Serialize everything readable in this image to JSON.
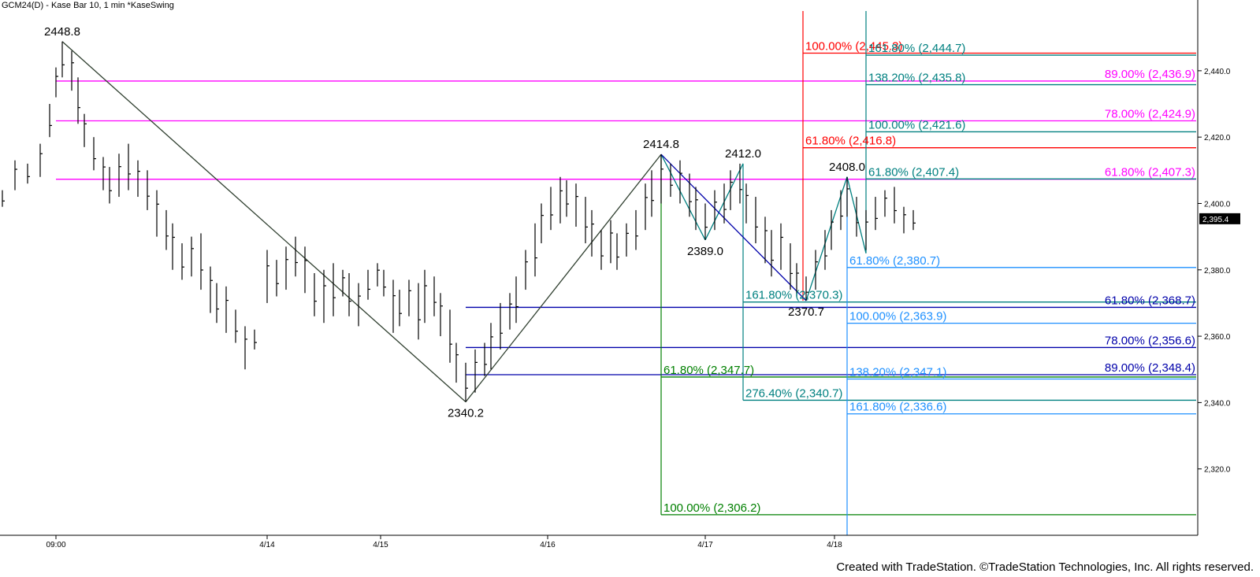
{
  "window": {
    "title": "GCM24(D) - Kase Bar 10, 1 min  *KaseSwing",
    "copyright": "Created with TradeStation. ©TradeStation Technologies, Inc. All rights reserved.",
    "last_price_label": "2,395.4"
  },
  "colors": {
    "magenta": "#ff00ff",
    "navy": "#0000aa",
    "red": "#ff0000",
    "green": "#008000",
    "teal": "#008080",
    "sky": "#1e90ff",
    "swing": "#2f3f2f",
    "bars": "#000000"
  },
  "chart_data": {
    "type": "bar",
    "subtype": "ohlc-price-bars",
    "ylim": [
      2300,
      2458
    ],
    "y_ticks": [
      2320,
      2340,
      2360,
      2380,
      2400,
      2420,
      2440
    ],
    "y_tick_labels": [
      "2,320.0",
      "2,340.0",
      "2,360.0",
      "2,380.0",
      "2,400.0",
      "2,420.0",
      "2,440.0"
    ],
    "x_tick_labels": [
      "09:00",
      "4/14",
      "4/15",
      "4/16",
      "4/17",
      "4/18"
    ],
    "x_tick_index": [
      17,
      84,
      120,
      173,
      223,
      264
    ],
    "bar_count": 292,
    "last_price": 2395.4,
    "bars": [
      {
        "i": 0,
        "h": 2404,
        "l": 2399
      },
      {
        "i": 4,
        "h": 2413,
        "l": 2404
      },
      {
        "i": 8,
        "h": 2412,
        "l": 2406
      },
      {
        "i": 12,
        "h": 2418,
        "l": 2408
      },
      {
        "i": 15,
        "h": 2430,
        "l": 2420
      },
      {
        "i": 17,
        "h": 2441,
        "l": 2432
      },
      {
        "i": 19,
        "h": 2448.8,
        "l": 2438
      },
      {
        "i": 22,
        "h": 2446,
        "l": 2434
      },
      {
        "i": 24,
        "h": 2438,
        "l": 2424
      },
      {
        "i": 26,
        "h": 2427,
        "l": 2417
      },
      {
        "i": 29,
        "h": 2420,
        "l": 2410
      },
      {
        "i": 32,
        "h": 2414,
        "l": 2404
      },
      {
        "i": 34,
        "h": 2411,
        "l": 2400
      },
      {
        "i": 37,
        "h": 2415,
        "l": 2402
      },
      {
        "i": 40,
        "h": 2418,
        "l": 2404
      },
      {
        "i": 43,
        "h": 2413,
        "l": 2402
      },
      {
        "i": 46,
        "h": 2410,
        "l": 2398
      },
      {
        "i": 49,
        "h": 2404,
        "l": 2390
      },
      {
        "i": 52,
        "h": 2398,
        "l": 2386
      },
      {
        "i": 54,
        "h": 2394,
        "l": 2380
      },
      {
        "i": 57,
        "h": 2388,
        "l": 2377
      },
      {
        "i": 60,
        "h": 2390,
        "l": 2378
      },
      {
        "i": 63,
        "h": 2391,
        "l": 2374
      },
      {
        "i": 66,
        "h": 2381,
        "l": 2367
      },
      {
        "i": 68,
        "h": 2376,
        "l": 2364
      },
      {
        "i": 71,
        "h": 2375,
        "l": 2361
      },
      {
        "i": 74,
        "h": 2368,
        "l": 2358
      },
      {
        "i": 77,
        "h": 2363,
        "l": 2350
      },
      {
        "i": 80,
        "h": 2362,
        "l": 2356
      },
      {
        "i": 84,
        "h": 2386,
        "l": 2370
      },
      {
        "i": 87,
        "h": 2383,
        "l": 2372
      },
      {
        "i": 90,
        "h": 2387,
        "l": 2374
      },
      {
        "i": 93,
        "h": 2390,
        "l": 2378
      },
      {
        "i": 96,
        "h": 2387,
        "l": 2373
      },
      {
        "i": 99,
        "h": 2379,
        "l": 2366
      },
      {
        "i": 102,
        "h": 2380,
        "l": 2364
      },
      {
        "i": 105,
        "h": 2382,
        "l": 2366
      },
      {
        "i": 108,
        "h": 2380,
        "l": 2372
      },
      {
        "i": 110,
        "h": 2379,
        "l": 2366
      },
      {
        "i": 113,
        "h": 2376,
        "l": 2363
      },
      {
        "i": 116,
        "h": 2380,
        "l": 2371
      },
      {
        "i": 119,
        "h": 2382,
        "l": 2375
      },
      {
        "i": 121,
        "h": 2380,
        "l": 2372
      },
      {
        "i": 124,
        "h": 2377,
        "l": 2361
      },
      {
        "i": 126,
        "h": 2374,
        "l": 2363
      },
      {
        "i": 129,
        "h": 2377,
        "l": 2366
      },
      {
        "i": 132,
        "h": 2376,
        "l": 2359
      },
      {
        "i": 134,
        "h": 2380,
        "l": 2364
      },
      {
        "i": 137,
        "h": 2378,
        "l": 2366
      },
      {
        "i": 139,
        "h": 2373,
        "l": 2360
      },
      {
        "i": 142,
        "h": 2368,
        "l": 2352
      },
      {
        "i": 144,
        "h": 2358,
        "l": 2346
      },
      {
        "i": 147,
        "h": 2352,
        "l": 2340.2
      },
      {
        "i": 150,
        "h": 2356,
        "l": 2343
      },
      {
        "i": 153,
        "h": 2358,
        "l": 2348
      },
      {
        "i": 155,
        "h": 2364,
        "l": 2350
      },
      {
        "i": 158,
        "h": 2370,
        "l": 2356
      },
      {
        "i": 161,
        "h": 2373,
        "l": 2362
      },
      {
        "i": 163,
        "h": 2378,
        "l": 2364
      },
      {
        "i": 166,
        "h": 2386,
        "l": 2374
      },
      {
        "i": 169,
        "h": 2394,
        "l": 2378
      },
      {
        "i": 171,
        "h": 2400,
        "l": 2388
      },
      {
        "i": 174,
        "h": 2405,
        "l": 2392
      },
      {
        "i": 177,
        "h": 2408,
        "l": 2394
      },
      {
        "i": 179,
        "h": 2407,
        "l": 2396
      },
      {
        "i": 182,
        "h": 2406,
        "l": 2393
      },
      {
        "i": 185,
        "h": 2402,
        "l": 2388
      },
      {
        "i": 187,
        "h": 2398,
        "l": 2384
      },
      {
        "i": 190,
        "h": 2392,
        "l": 2380
      },
      {
        "i": 193,
        "h": 2395,
        "l": 2382
      },
      {
        "i": 195,
        "h": 2391,
        "l": 2380
      },
      {
        "i": 198,
        "h": 2394,
        "l": 2384
      },
      {
        "i": 201,
        "h": 2398,
        "l": 2386
      },
      {
        "i": 204,
        "h": 2406,
        "l": 2392
      },
      {
        "i": 206,
        "h": 2410,
        "l": 2396
      },
      {
        "i": 209,
        "h": 2414.8,
        "l": 2400
      },
      {
        "i": 212,
        "h": 2412,
        "l": 2402
      },
      {
        "i": 215,
        "h": 2413,
        "l": 2400
      },
      {
        "i": 218,
        "h": 2409,
        "l": 2396
      },
      {
        "i": 220,
        "h": 2405,
        "l": 2392
      },
      {
        "i": 223,
        "h": 2400,
        "l": 2389
      },
      {
        "i": 226,
        "h": 2404,
        "l": 2392
      },
      {
        "i": 229,
        "h": 2406,
        "l": 2394
      },
      {
        "i": 231,
        "h": 2410,
        "l": 2398
      },
      {
        "i": 234,
        "h": 2412,
        "l": 2400
      },
      {
        "i": 236,
        "h": 2406,
        "l": 2394
      },
      {
        "i": 239,
        "h": 2402,
        "l": 2388
      },
      {
        "i": 242,
        "h": 2396,
        "l": 2382
      },
      {
        "i": 244,
        "h": 2392,
        "l": 2378
      },
      {
        "i": 247,
        "h": 2394,
        "l": 2380
      },
      {
        "i": 250,
        "h": 2388,
        "l": 2374
      },
      {
        "i": 252,
        "h": 2382,
        "l": 2372
      },
      {
        "i": 255,
        "h": 2378,
        "l": 2370.7
      },
      {
        "i": 258,
        "h": 2386,
        "l": 2374
      },
      {
        "i": 261,
        "h": 2392,
        "l": 2380
      },
      {
        "i": 263,
        "h": 2398,
        "l": 2386
      },
      {
        "i": 266,
        "h": 2404,
        "l": 2392
      },
      {
        "i": 268,
        "h": 2408,
        "l": 2396
      },
      {
        "i": 271,
        "h": 2402,
        "l": 2390
      },
      {
        "i": 274,
        "h": 2398,
        "l": 2386
      },
      {
        "i": 277,
        "h": 2402,
        "l": 2392
      },
      {
        "i": 280,
        "h": 2404,
        "l": 2396
      },
      {
        "i": 283,
        "h": 2405,
        "l": 2394
      },
      {
        "i": 286,
        "h": 2399,
        "l": 2391
      },
      {
        "i": 289,
        "h": 2398,
        "l": 2392
      }
    ],
    "swing_points": [
      {
        "i": 19,
        "price": 2448.8,
        "label": "2448.8",
        "pos": "above"
      },
      {
        "i": 147,
        "price": 2340.2,
        "label": "2340.2",
        "pos": "below"
      },
      {
        "i": 209,
        "price": 2414.8,
        "label": "2414.8",
        "pos": "above"
      },
      {
        "i": 223,
        "price": 2389.0,
        "label": "2389.0",
        "pos": "below"
      },
      {
        "i": 235,
        "price": 2412.0,
        "label": "2412.0",
        "pos": "above"
      },
      {
        "i": 255,
        "price": 2370.7,
        "label": "2370.7",
        "pos": "below"
      },
      {
        "i": 268,
        "price": 2408.0,
        "label": "2408.0",
        "pos": "above"
      }
    ],
    "swing_lines": [
      {
        "from": [
          19,
          2448.8
        ],
        "to": [
          147,
          2340.2
        ],
        "color": "swing"
      },
      {
        "from": [
          147,
          2340.2
        ],
        "to": [
          209,
          2414.8
        ],
        "color": "swing"
      },
      {
        "from": [
          209,
          2414.8
        ],
        "to": [
          223,
          2389.0
        ],
        "color": "teal"
      },
      {
        "from": [
          223,
          2389.0
        ],
        "to": [
          235,
          2412.0
        ],
        "color": "teal"
      },
      {
        "from": [
          209,
          2414.8
        ],
        "to": [
          255,
          2370.7
        ],
        "color": "navy"
      },
      {
        "from": [
          255,
          2370.7
        ],
        "to": [
          268,
          2408.0
        ],
        "color": "teal"
      },
      {
        "from": [
          268,
          2408.0
        ],
        "to": [
          274,
          2385.0
        ],
        "color": "teal"
      }
    ],
    "fib_lines": [
      {
        "price": 2436.9,
        "label": "89.00% (2,436.9)",
        "color": "magenta",
        "x_from": 17,
        "label_side": "right"
      },
      {
        "price": 2424.9,
        "label": "78.00% (2,424.9)",
        "color": "magenta",
        "x_from": 17,
        "label_side": "right"
      },
      {
        "price": 2407.3,
        "label": "61.80% (2,407.3)",
        "color": "magenta",
        "x_from": 17,
        "label_side": "right"
      },
      {
        "price": 2368.7,
        "label": "61.80% (2,368.7)",
        "color": "navy",
        "x_from": 147,
        "label_side": "right"
      },
      {
        "price": 2356.6,
        "label": "78.00% (2,356.6)",
        "color": "navy",
        "x_from": 147,
        "label_side": "right"
      },
      {
        "price": 2348.4,
        "label": "89.00% (2,348.4)",
        "color": "navy",
        "x_from": 147,
        "label_side": "right"
      },
      {
        "price": 2445.3,
        "label": "100.00% (2,445.3)",
        "color": "red",
        "x_from": 254,
        "label_side": "left"
      },
      {
        "price": 2416.8,
        "label": "61.80% (2,416.8)",
        "color": "red",
        "x_from": 254,
        "label_side": "left"
      },
      {
        "price": 2347.7,
        "label": "61.80% (2,347.7)",
        "color": "green",
        "x_from": 209,
        "label_side": "left"
      },
      {
        "price": 2306.2,
        "label": "100.00% (2,306.2)",
        "color": "green",
        "x_from": 209,
        "label_side": "left"
      },
      {
        "price": 2370.3,
        "label": "161.80% (2,370.3)",
        "color": "teal",
        "x_from": 235,
        "label_side": "left"
      },
      {
        "price": 2340.7,
        "label": "276.40% (2,340.7)",
        "color": "teal",
        "x_from": 235,
        "label_side": "left"
      },
      {
        "price": 2444.7,
        "label": "161.80% (2,444.7)",
        "color": "teal",
        "x_from": 274,
        "label_side": "left"
      },
      {
        "price": 2435.8,
        "label": "138.20% (2,435.8)",
        "color": "teal",
        "x_from": 274,
        "label_side": "left"
      },
      {
        "price": 2421.6,
        "label": "100.00% (2,421.6)",
        "color": "teal",
        "x_from": 274,
        "label_side": "left"
      },
      {
        "price": 2407.4,
        "label": "61.80% (2,407.4)",
        "color": "teal",
        "x_from": 274,
        "label_side": "left"
      },
      {
        "price": 2380.7,
        "label": "61.80% (2,380.7)",
        "color": "sky",
        "x_from": 268,
        "label_side": "left"
      },
      {
        "price": 2363.9,
        "label": "100.00% (2,363.9)",
        "color": "sky",
        "x_from": 268,
        "label_side": "left"
      },
      {
        "price": 2347.1,
        "label": "138.20% (2,347.1)",
        "color": "sky",
        "x_from": 268,
        "label_side": "left"
      },
      {
        "price": 2336.6,
        "label": "161.80% (2,336.6)",
        "color": "sky",
        "x_from": 268,
        "label_side": "left"
      }
    ],
    "vertical_lines": [
      {
        "i": 209,
        "y_from": 2306.2,
        "y_to": 2414.8,
        "color": "green"
      },
      {
        "i": 254,
        "y_from": 2370.7,
        "y_to": 2458,
        "color": "red"
      },
      {
        "i": 235,
        "y_from": 2340.7,
        "y_to": 2412.0,
        "color": "teal"
      },
      {
        "i": 274,
        "y_from": 2385.0,
        "y_to": 2458,
        "color": "teal"
      },
      {
        "i": 268,
        "y_from": 2300,
        "y_to": 2408.0,
        "color": "sky"
      }
    ]
  }
}
